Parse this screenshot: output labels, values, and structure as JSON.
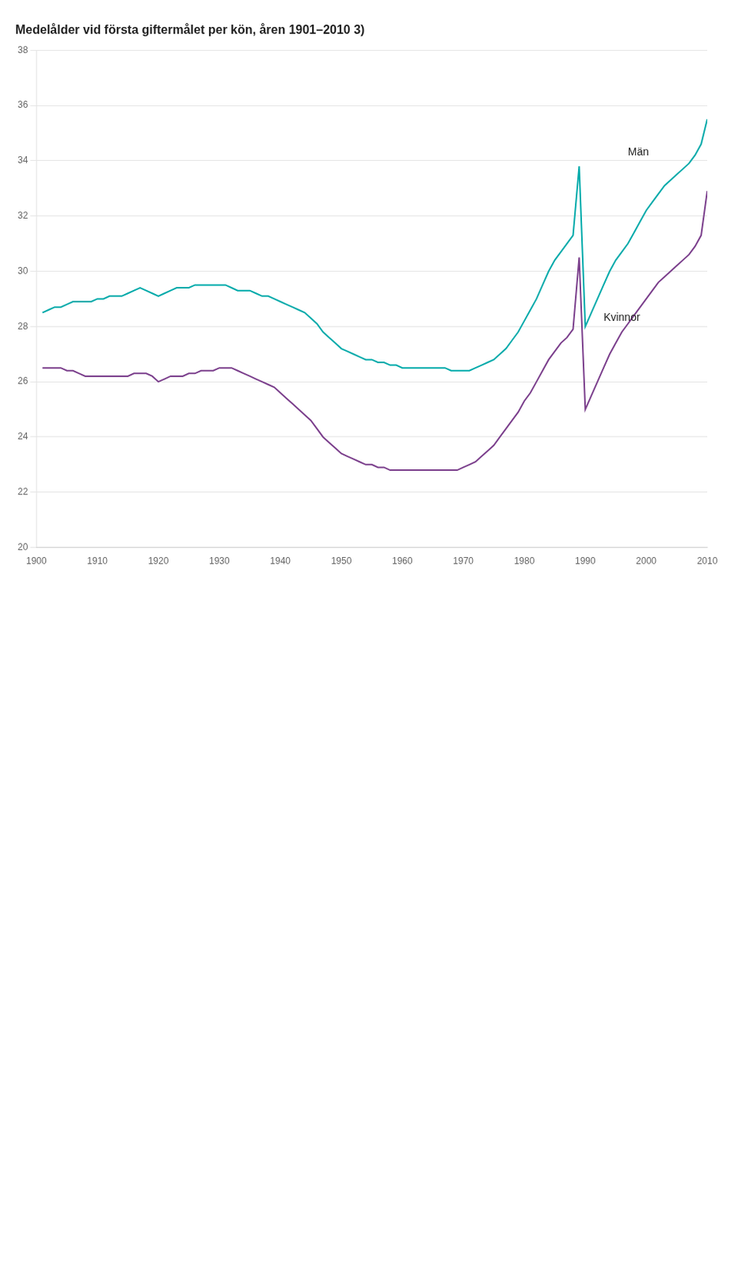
{
  "chart_data": {
    "type": "line",
    "title": "Medelålder vid första giftermålet per kön, åren 1901–2010 3)",
    "x": [
      1901,
      1902,
      1903,
      1904,
      1905,
      1906,
      1907,
      1908,
      1909,
      1910,
      1911,
      1912,
      1913,
      1914,
      1915,
      1916,
      1917,
      1918,
      1919,
      1920,
      1921,
      1922,
      1923,
      1924,
      1925,
      1926,
      1927,
      1928,
      1929,
      1930,
      1931,
      1932,
      1933,
      1934,
      1935,
      1936,
      1937,
      1938,
      1939,
      1940,
      1941,
      1942,
      1943,
      1944,
      1945,
      1946,
      1947,
      1948,
      1949,
      1950,
      1951,
      1952,
      1953,
      1954,
      1955,
      1956,
      1957,
      1958,
      1959,
      1960,
      1961,
      1962,
      1963,
      1964,
      1965,
      1966,
      1967,
      1968,
      1969,
      1970,
      1971,
      1972,
      1973,
      1974,
      1975,
      1976,
      1977,
      1978,
      1979,
      1980,
      1981,
      1982,
      1983,
      1984,
      1985,
      1986,
      1987,
      1988,
      1989,
      1990,
      1991,
      1992,
      1993,
      1994,
      1995,
      1996,
      1997,
      1998,
      1999,
      2000,
      2001,
      2002,
      2003,
      2004,
      2005,
      2006,
      2007,
      2008,
      2009,
      2010
    ],
    "series": [
      {
        "name": "Män",
        "color": "#00AAAA",
        "values": [
          28.5,
          28.6,
          28.7,
          28.7,
          28.8,
          28.9,
          28.9,
          28.9,
          28.9,
          29.0,
          29.0,
          29.1,
          29.1,
          29.1,
          29.2,
          29.3,
          29.4,
          29.3,
          29.2,
          29.1,
          29.2,
          29.3,
          29.4,
          29.4,
          29.4,
          29.5,
          29.5,
          29.5,
          29.5,
          29.5,
          29.5,
          29.4,
          29.3,
          29.3,
          29.3,
          29.2,
          29.1,
          29.1,
          29.0,
          28.9,
          28.8,
          28.7,
          28.6,
          28.5,
          28.3,
          28.1,
          27.8,
          27.6,
          27.4,
          27.2,
          27.1,
          27.0,
          26.9,
          26.8,
          26.8,
          26.7,
          26.7,
          26.6,
          26.6,
          26.5,
          26.5,
          26.5,
          26.5,
          26.5,
          26.5,
          26.5,
          26.5,
          26.4,
          26.4,
          26.4,
          26.4,
          26.5,
          26.6,
          26.7,
          26.8,
          27.0,
          27.2,
          27.5,
          27.8,
          28.2,
          28.6,
          29.0,
          29.5,
          30.0,
          30.4,
          30.7,
          31.0,
          31.3,
          33.8,
          28.0,
          28.5,
          29.0,
          29.5,
          30.0,
          30.4,
          30.7,
          31.0,
          31.4,
          31.8,
          32.2,
          32.5,
          32.8,
          33.1,
          33.3,
          33.5,
          33.7,
          33.9,
          34.2,
          34.6,
          35.5
        ]
      },
      {
        "name": "Kvinnor",
        "color": "#7B3F8C",
        "values": [
          26.5,
          26.5,
          26.5,
          26.5,
          26.4,
          26.4,
          26.3,
          26.2,
          26.2,
          26.2,
          26.2,
          26.2,
          26.2,
          26.2,
          26.2,
          26.3,
          26.3,
          26.3,
          26.2,
          26.0,
          26.1,
          26.2,
          26.2,
          26.2,
          26.3,
          26.3,
          26.4,
          26.4,
          26.4,
          26.5,
          26.5,
          26.5,
          26.4,
          26.3,
          26.2,
          26.1,
          26.0,
          25.9,
          25.8,
          25.6,
          25.4,
          25.2,
          25.0,
          24.8,
          24.6,
          24.3,
          24.0,
          23.8,
          23.6,
          23.4,
          23.3,
          23.2,
          23.1,
          23.0,
          23.0,
          22.9,
          22.9,
          22.8,
          22.8,
          22.8,
          22.8,
          22.8,
          22.8,
          22.8,
          22.8,
          22.8,
          22.8,
          22.8,
          22.8,
          22.9,
          23.0,
          23.1,
          23.3,
          23.5,
          23.7,
          24.0,
          24.3,
          24.6,
          24.9,
          25.3,
          25.6,
          26.0,
          26.4,
          26.8,
          27.1,
          27.4,
          27.6,
          27.9,
          30.5,
          25.0,
          25.5,
          26.0,
          26.5,
          27.0,
          27.4,
          27.8,
          28.1,
          28.4,
          28.7,
          29.0,
          29.3,
          29.6,
          29.8,
          30.0,
          30.2,
          30.4,
          30.6,
          30.9,
          31.3,
          32.9
        ]
      }
    ],
    "annotations": [
      {
        "text": "Män",
        "x": 1997,
        "y": 34.3
      },
      {
        "text": "Kvinnor",
        "x": 1993,
        "y": 28.3
      }
    ],
    "xlim": [
      1900,
      2010
    ],
    "xticks": [
      1900,
      1910,
      1920,
      1930,
      1940,
      1950,
      1960,
      1970,
      1980,
      1990,
      2000,
      2010
    ],
    "ylim": [
      20,
      38
    ],
    "yticks": [
      20,
      22,
      24,
      26,
      28,
      30,
      32,
      34,
      36,
      38
    ],
    "grid": "y"
  }
}
